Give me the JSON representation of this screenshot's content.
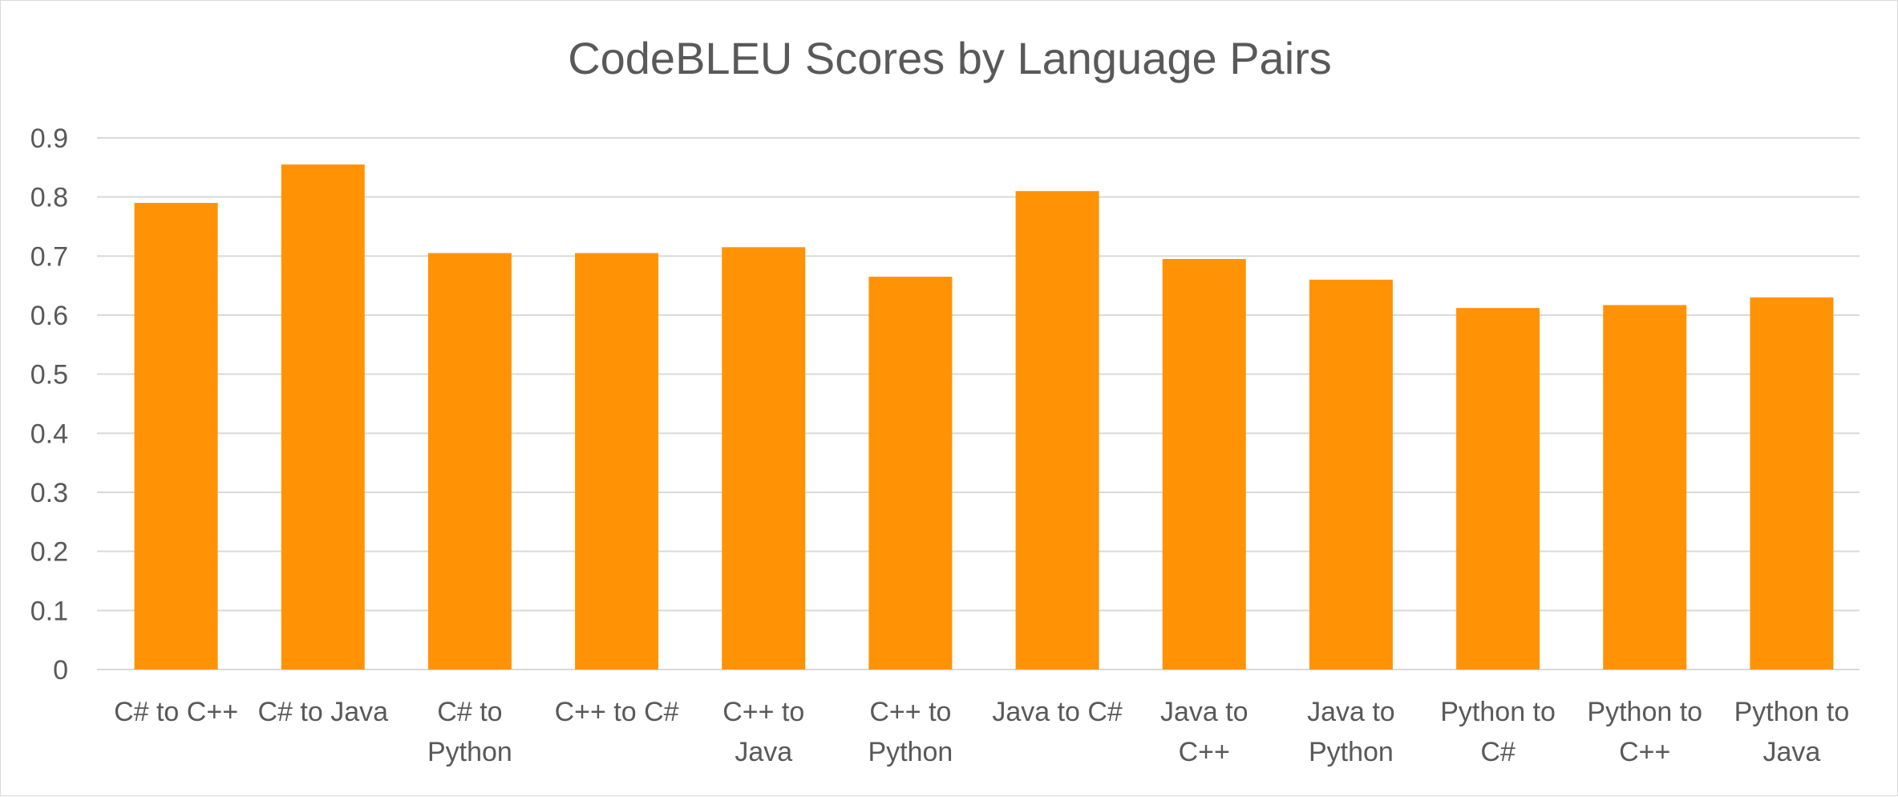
{
  "chart_data": {
    "type": "bar",
    "title": "CodeBLEU Scores by Language Pairs",
    "xlabel": "",
    "ylabel": "",
    "categories": [
      [
        "C# to C++"
      ],
      [
        "C# to Java"
      ],
      [
        "C# to",
        "Python"
      ],
      [
        "C++ to C#"
      ],
      [
        "C++ to",
        "Java"
      ],
      [
        "C++ to",
        "Python"
      ],
      [
        "Java to C#"
      ],
      [
        "Java to",
        "C++"
      ],
      [
        "Java to",
        "Python"
      ],
      [
        "Python to",
        "C#"
      ],
      [
        "Python to",
        "C++"
      ],
      [
        "Python to",
        "Java"
      ]
    ],
    "values": [
      0.79,
      0.855,
      0.705,
      0.705,
      0.715,
      0.665,
      0.81,
      0.695,
      0.66,
      0.612,
      0.617,
      0.63
    ],
    "ylim": [
      0,
      0.9
    ],
    "yticks": [
      "0",
      "0.1",
      "0.2",
      "0.3",
      "0.4",
      "0.5",
      "0.6",
      "0.7",
      "0.8",
      "0.9"
    ],
    "grid": true,
    "legend": "none",
    "bar_color": "#FF9305",
    "grid_color": "#d9d9d9",
    "text_color": "#595959"
  }
}
